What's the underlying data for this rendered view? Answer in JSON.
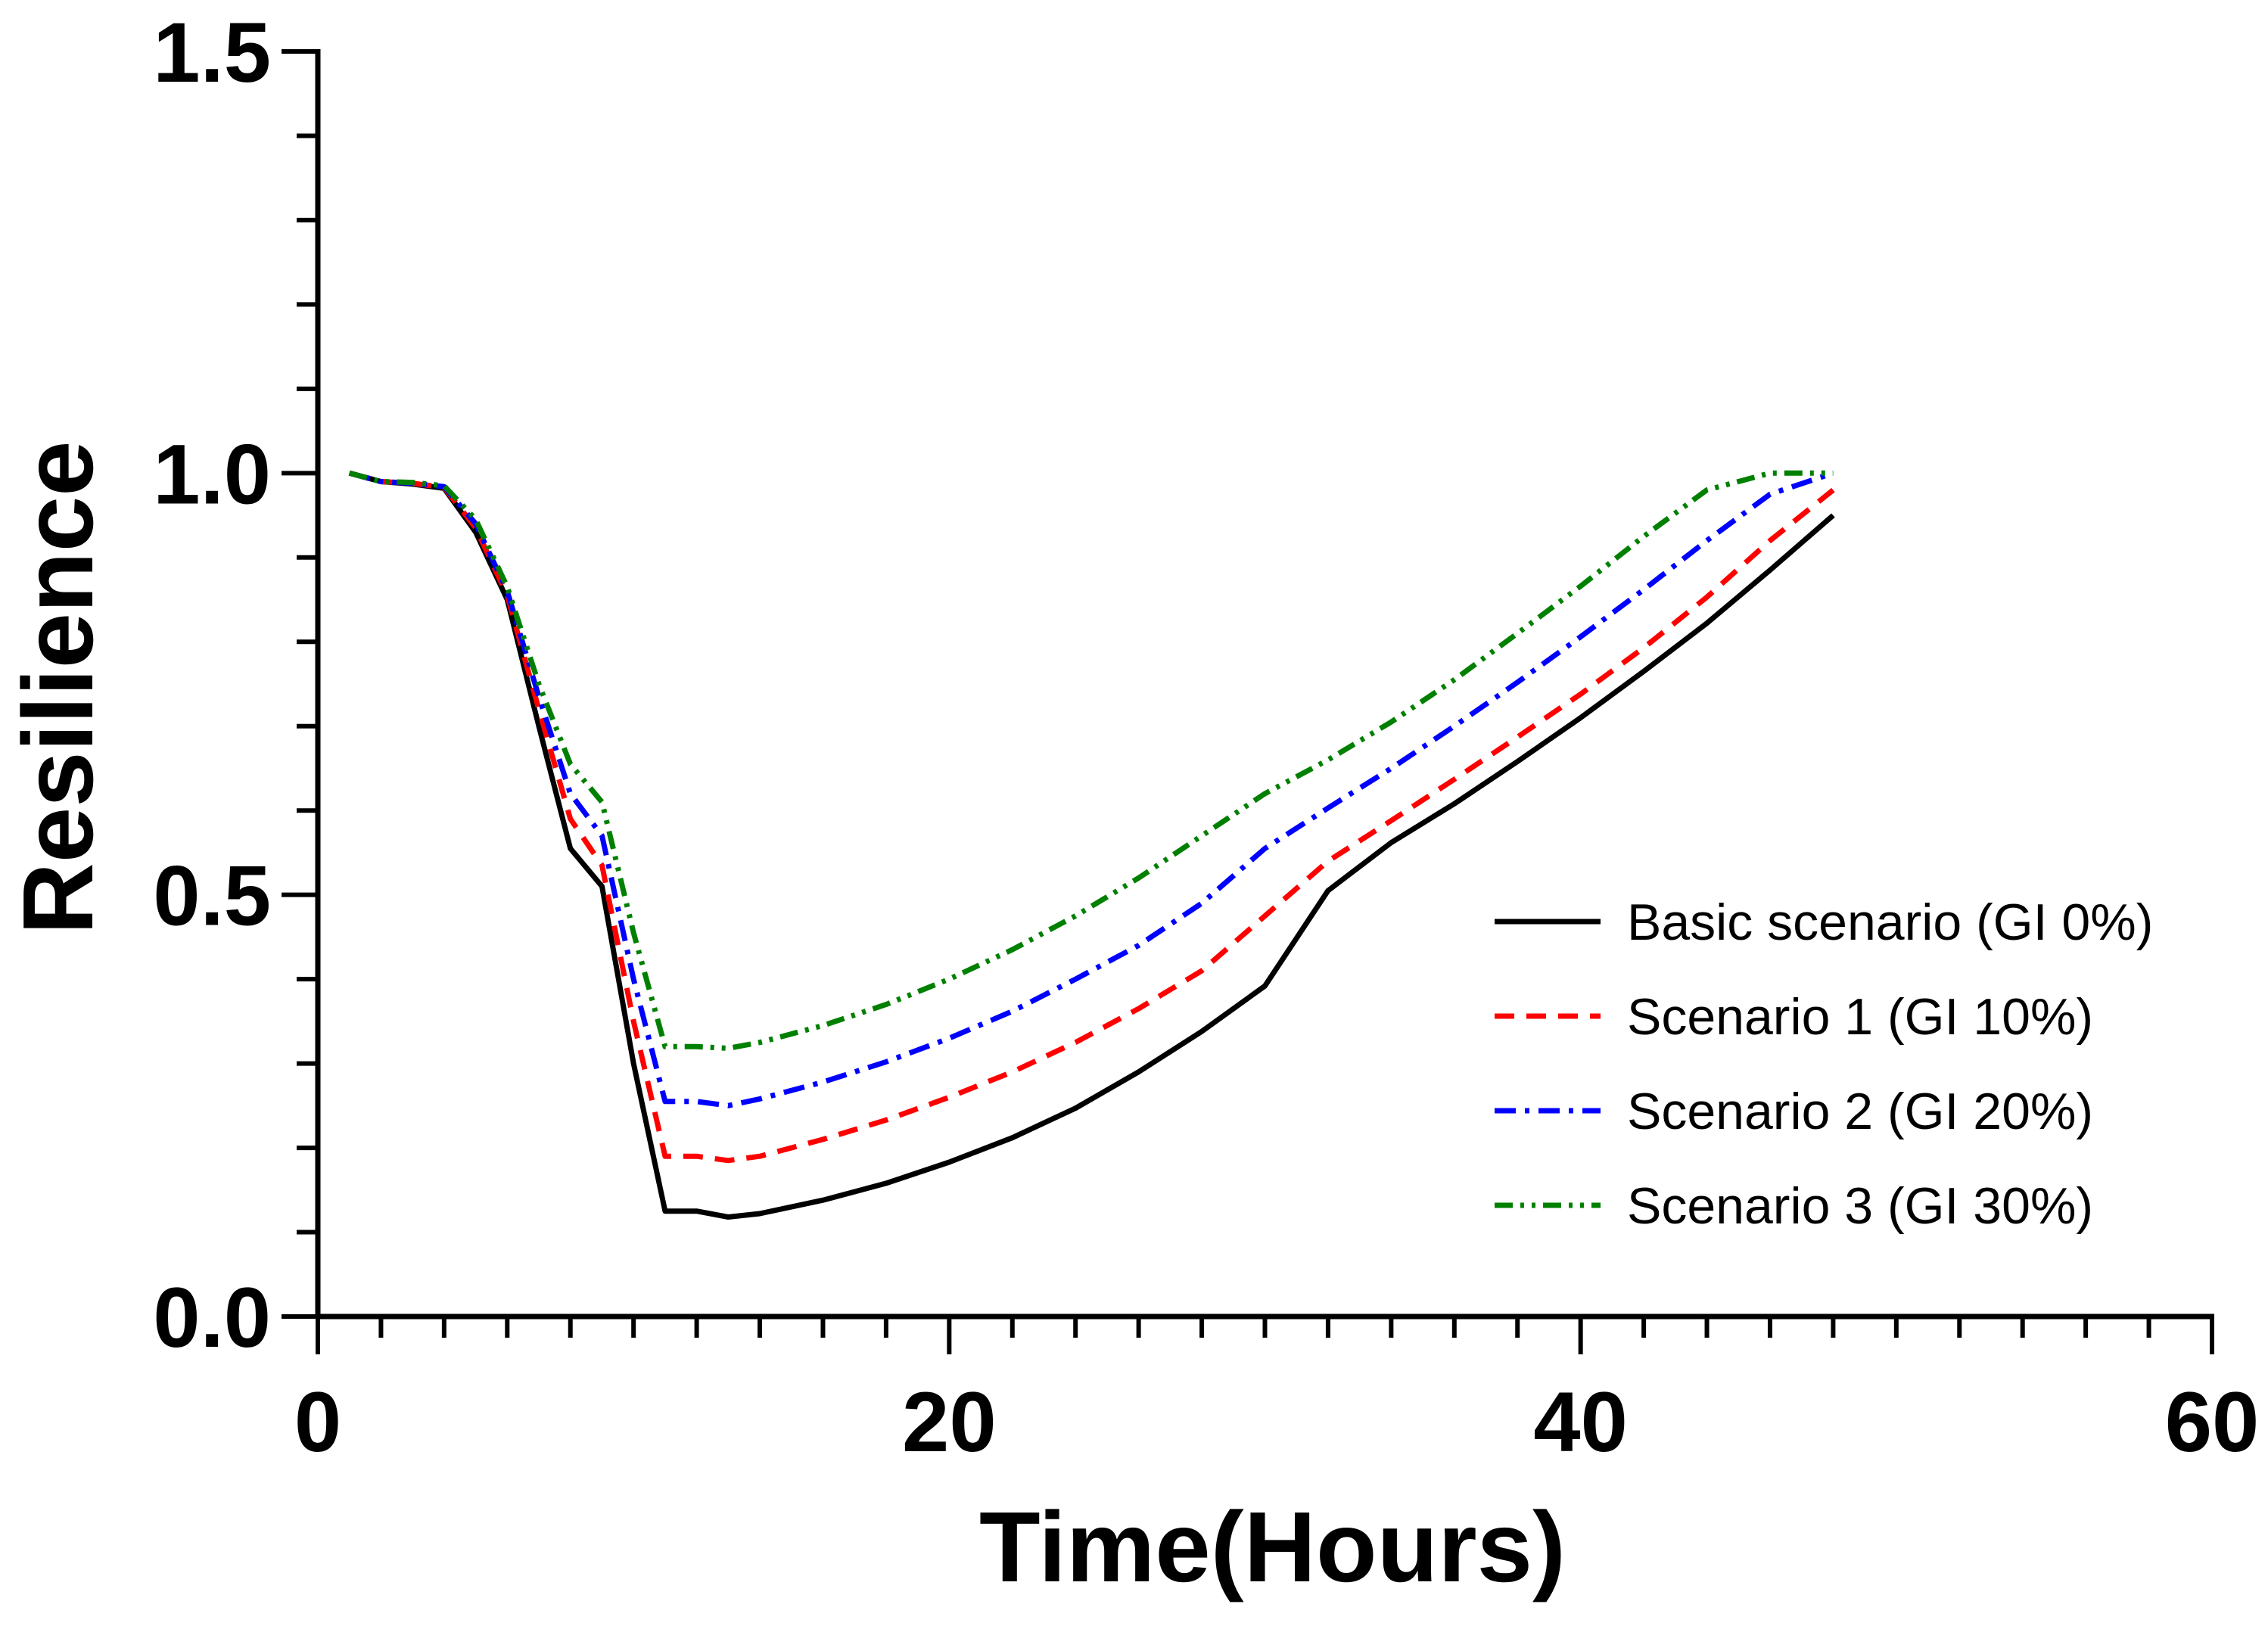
{
  "chart_data": {
    "type": "line",
    "title": "",
    "xlabel": "Time(Hours)",
    "ylabel": "Resilience",
    "xlim": [
      0,
      60
    ],
    "ylim": [
      0,
      1.5
    ],
    "x_ticks": [
      0,
      20,
      40,
      60
    ],
    "x_tick_labels": [
      "0",
      "20",
      "40",
      "60"
    ],
    "y_ticks": [
      0,
      0.5,
      1.0,
      1.5
    ],
    "y_tick_labels": [
      "0.0",
      "0.5",
      "1.0",
      "1.5"
    ],
    "x_minor_step": 2,
    "y_minor_step": 0.1,
    "grid": false,
    "legend_position": "right",
    "series": [
      {
        "name": "Basic scenario (GI 0%)",
        "color": "#000000",
        "dash": "solid",
        "x": [
          1,
          2,
          3,
          4,
          5,
          6,
          7,
          8,
          9,
          10,
          11,
          12,
          13,
          14,
          16,
          18,
          20,
          22,
          24,
          26,
          28,
          30,
          32,
          34,
          36,
          38,
          40,
          42,
          44,
          46,
          48
        ],
        "y": [
          1.0,
          0.99,
          0.987,
          0.982,
          0.93,
          0.85,
          0.7,
          0.555,
          0.51,
          0.3,
          0.125,
          0.125,
          0.118,
          0.122,
          0.138,
          0.158,
          0.183,
          0.212,
          0.247,
          0.29,
          0.338,
          0.392,
          0.505,
          0.562,
          0.608,
          0.658,
          0.71,
          0.765,
          0.822,
          0.885,
          0.95
        ]
      },
      {
        "name": "Scenario 1 (GI 10%)",
        "color": "#ff0000",
        "dash": "dashed",
        "x": [
          1,
          2,
          3,
          4,
          5,
          6,
          7,
          8,
          9,
          10,
          11,
          12,
          13,
          14,
          16,
          18,
          20,
          22,
          24,
          26,
          28,
          30,
          32,
          34,
          36,
          38,
          40,
          42,
          44,
          46,
          48
        ],
        "y": [
          1.0,
          0.99,
          0.988,
          0.983,
          0.935,
          0.855,
          0.72,
          0.59,
          0.535,
          0.35,
          0.19,
          0.19,
          0.185,
          0.19,
          0.21,
          0.233,
          0.26,
          0.29,
          0.325,
          0.365,
          0.41,
          0.475,
          0.54,
          0.588,
          0.637,
          0.687,
          0.738,
          0.793,
          0.853,
          0.92,
          0.98
        ]
      },
      {
        "name": "Scenario 2 (GI 20%)",
        "color": "#0000ff",
        "dash": "dash-dot",
        "x": [
          1,
          2,
          3,
          4,
          5,
          6,
          7,
          8,
          9,
          10,
          11,
          12,
          13,
          14,
          16,
          18,
          20,
          22,
          24,
          26,
          28,
          30,
          32,
          34,
          36,
          38,
          40,
          42,
          44,
          46,
          48
        ],
        "y": [
          1.0,
          0.99,
          0.988,
          0.984,
          0.94,
          0.86,
          0.735,
          0.62,
          0.57,
          0.4,
          0.255,
          0.255,
          0.25,
          0.258,
          0.278,
          0.302,
          0.33,
          0.362,
          0.4,
          0.44,
          0.49,
          0.555,
          0.603,
          0.65,
          0.7,
          0.752,
          0.806,
          0.862,
          0.92,
          0.975,
          1.0
        ]
      },
      {
        "name": "Scenario 3 (GI 30%)",
        "color": "#008000",
        "dash": "dash-dot-dot",
        "x": [
          1,
          2,
          3,
          4,
          5,
          6,
          7,
          8,
          9,
          10,
          11,
          12,
          13,
          14,
          16,
          18,
          20,
          22,
          24,
          26,
          28,
          30,
          32,
          34,
          36,
          38,
          40,
          42,
          44,
          46,
          48
        ],
        "y": [
          1.0,
          0.99,
          0.989,
          0.985,
          0.945,
          0.865,
          0.75,
          0.655,
          0.61,
          0.455,
          0.32,
          0.32,
          0.318,
          0.325,
          0.345,
          0.37,
          0.4,
          0.435,
          0.475,
          0.52,
          0.57,
          0.62,
          0.66,
          0.705,
          0.755,
          0.81,
          0.866,
          0.925,
          0.98,
          1.0,
          1.0
        ]
      }
    ]
  }
}
